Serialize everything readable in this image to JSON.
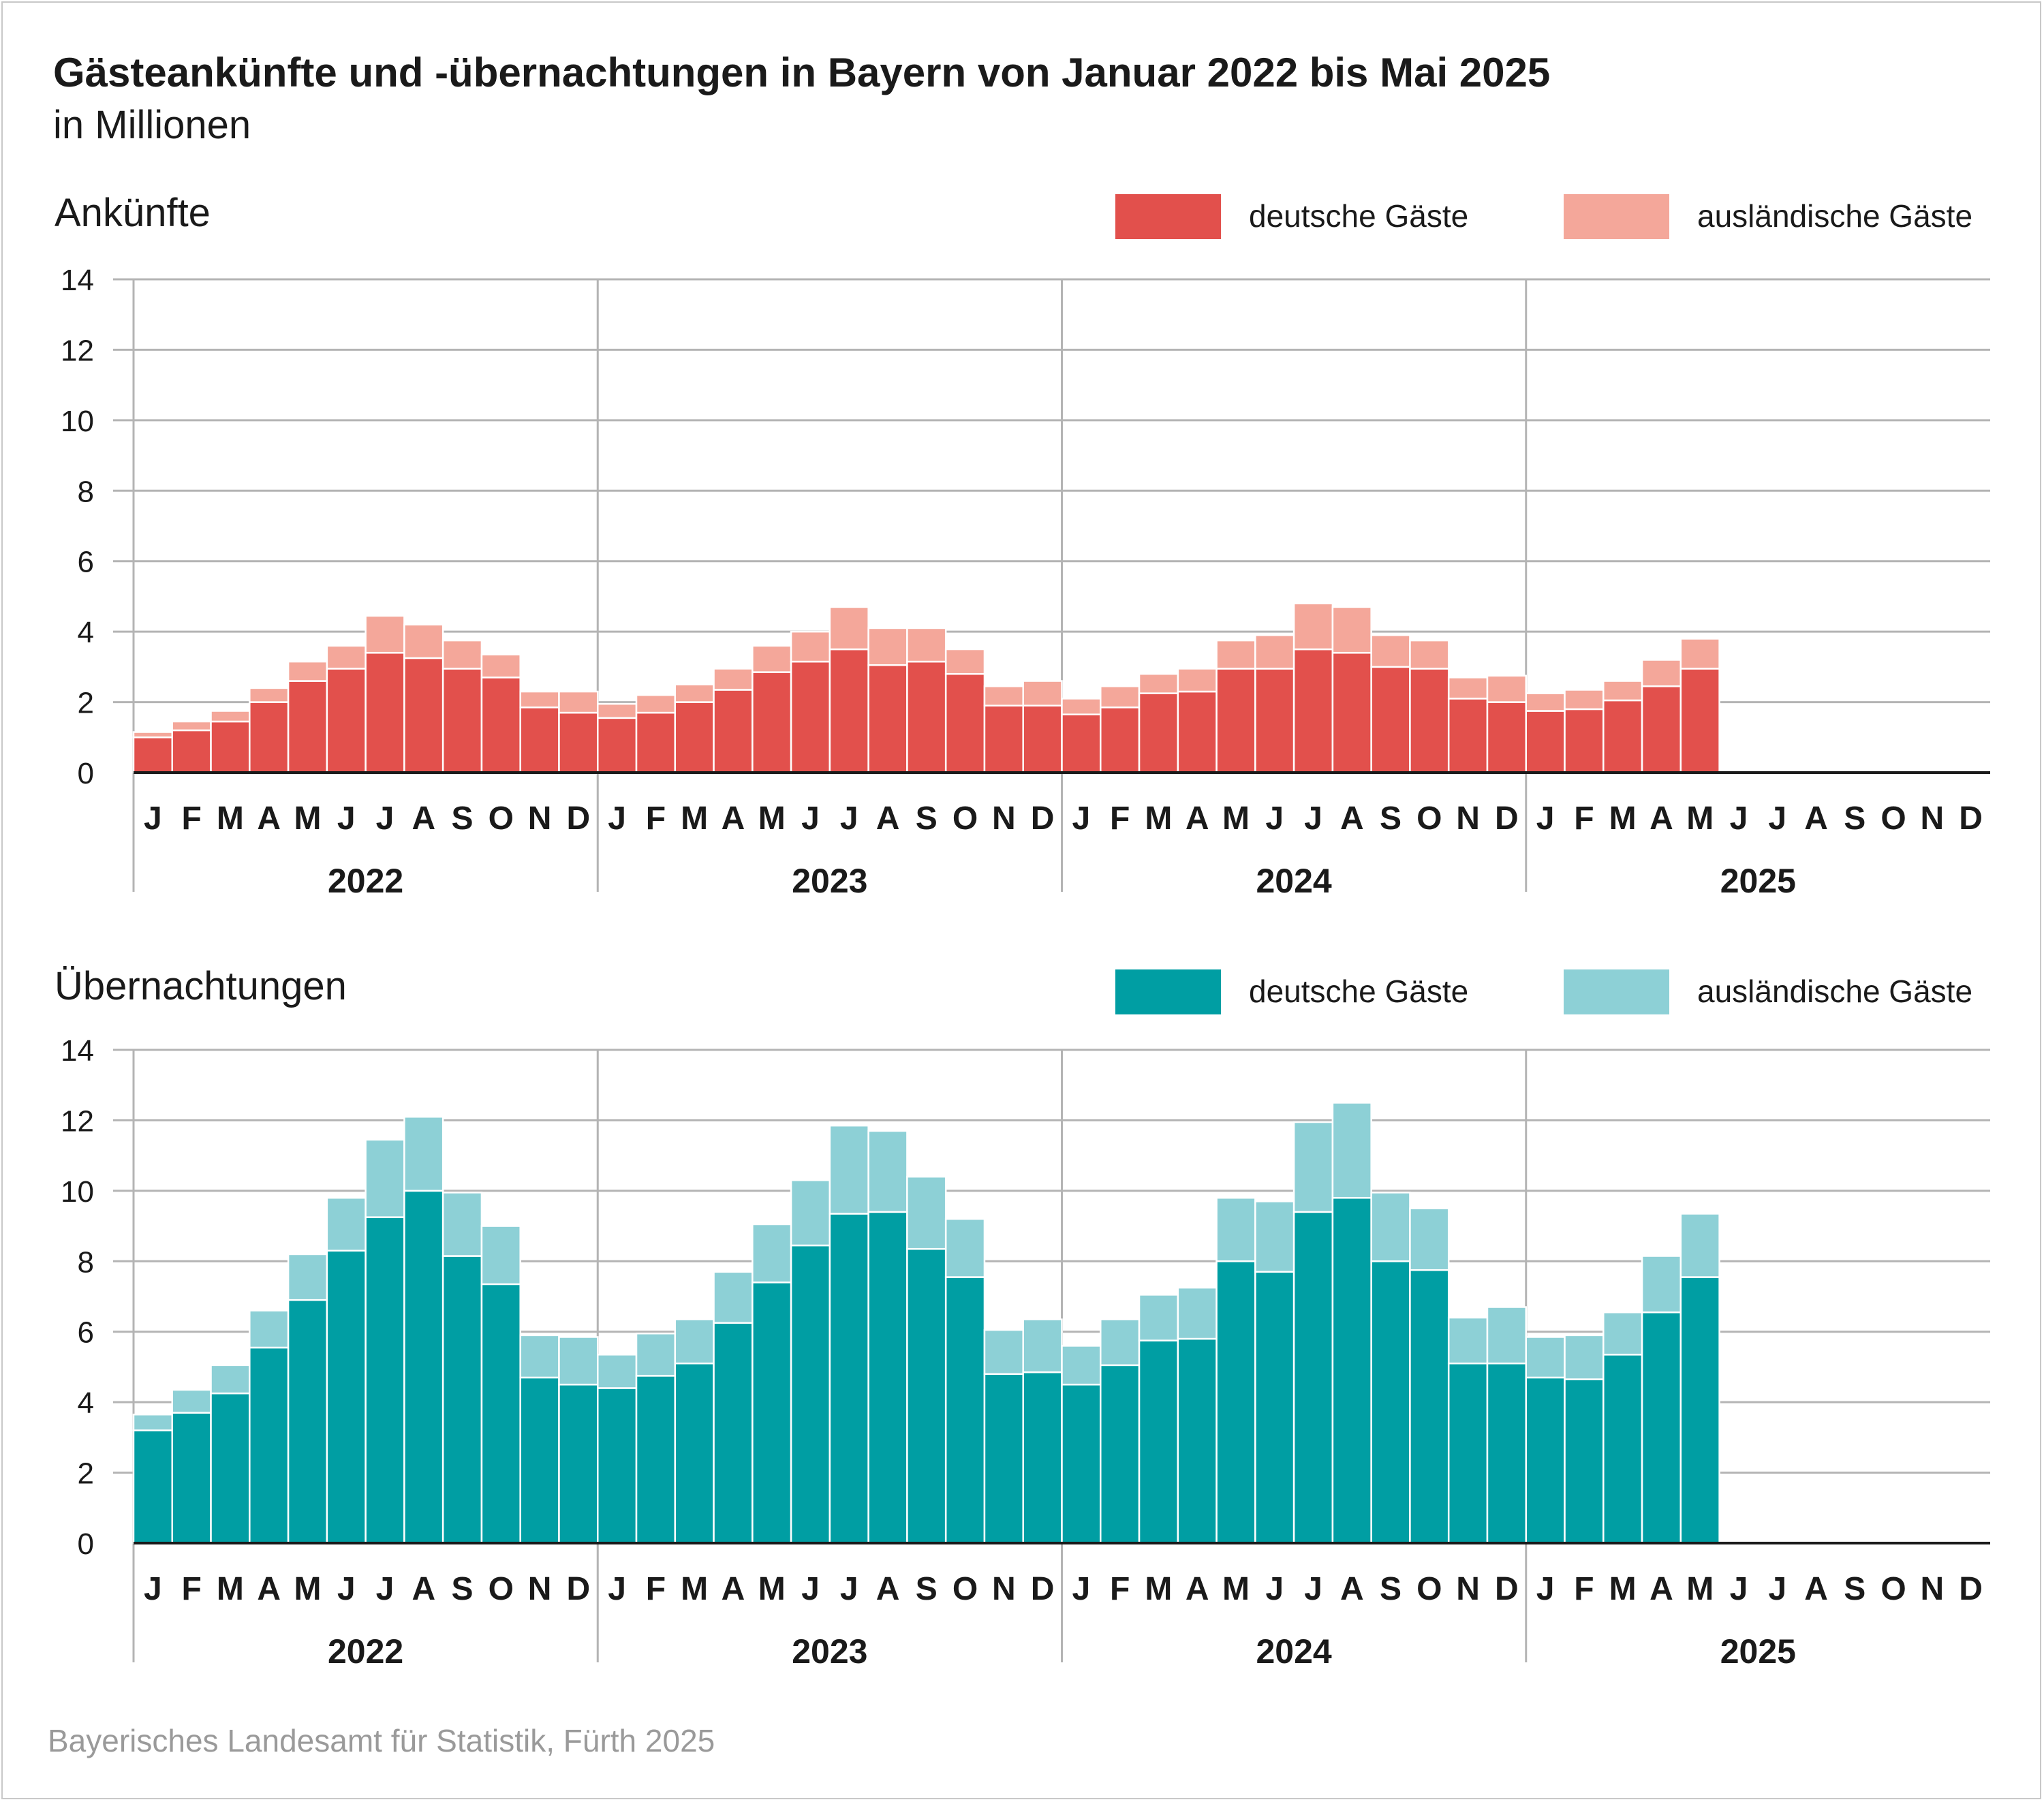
{
  "header": {
    "title": "Gästeankünfte und -übernachtungen in Bayern von Januar 2022 bis Mai 2025",
    "subtitle": "in Millionen"
  },
  "source": "Bayerisches Landesamt für Statistik, Fürth 2025",
  "colors": {
    "arrivals_domestic": "#e2504c",
    "arrivals_foreign": "#f4a79a",
    "nights_domestic": "#009ea3",
    "nights_foreign": "#8dd0d6",
    "grid": "#b4b4b4",
    "axis": "#1a1a1a"
  },
  "chart_data": [
    {
      "type": "bar",
      "stacked": true,
      "title": "Ankünfte",
      "ylim": [
        0,
        14
      ],
      "yticks": [
        0,
        2,
        4,
        6,
        8,
        10,
        12,
        14
      ],
      "grid": true,
      "legend_position": "top-right",
      "years": [
        "2022",
        "2023",
        "2024",
        "2025"
      ],
      "month_labels": [
        "J",
        "F",
        "M",
        "A",
        "M",
        "J",
        "J",
        "A",
        "S",
        "O",
        "N",
        "D"
      ],
      "series": [
        {
          "name": "deutsche Gäste",
          "values": [
            1.0,
            1.2,
            1.45,
            2.0,
            2.6,
            2.95,
            3.4,
            3.25,
            2.95,
            2.7,
            1.85,
            1.7,
            1.55,
            1.7,
            2.0,
            2.35,
            2.85,
            3.15,
            3.5,
            3.05,
            3.15,
            2.8,
            1.9,
            1.9,
            1.65,
            1.85,
            2.25,
            2.3,
            2.95,
            2.95,
            3.5,
            3.4,
            3.0,
            2.95,
            2.1,
            2.0,
            1.75,
            1.8,
            2.05,
            2.45,
            2.95
          ]
        },
        {
          "name": "ausländische Gäste",
          "values": [
            0.15,
            0.25,
            0.3,
            0.4,
            0.55,
            0.65,
            1.05,
            0.95,
            0.8,
            0.65,
            0.45,
            0.6,
            0.4,
            0.5,
            0.5,
            0.6,
            0.75,
            0.85,
            1.2,
            1.05,
            0.95,
            0.7,
            0.55,
            0.7,
            0.45,
            0.6,
            0.55,
            0.65,
            0.8,
            0.95,
            1.3,
            1.3,
            0.9,
            0.8,
            0.6,
            0.75,
            0.5,
            0.55,
            0.55,
            0.75,
            0.85
          ]
        }
      ]
    },
    {
      "type": "bar",
      "stacked": true,
      "title": "Übernachtungen",
      "ylim": [
        0,
        14
      ],
      "yticks": [
        0,
        2,
        4,
        6,
        8,
        10,
        12,
        14
      ],
      "grid": true,
      "legend_position": "top-right",
      "years": [
        "2022",
        "2023",
        "2024",
        "2025"
      ],
      "month_labels": [
        "J",
        "F",
        "M",
        "A",
        "M",
        "J",
        "J",
        "A",
        "S",
        "O",
        "N",
        "D"
      ],
      "series": [
        {
          "name": "deutsche Gäste",
          "values": [
            3.2,
            3.7,
            4.25,
            5.55,
            6.9,
            8.3,
            9.25,
            10.0,
            8.15,
            7.35,
            4.7,
            4.5,
            4.4,
            4.75,
            5.1,
            6.25,
            7.4,
            8.45,
            9.35,
            9.4,
            8.35,
            7.55,
            4.8,
            4.85,
            4.5,
            5.05,
            5.75,
            5.8,
            8.0,
            7.7,
            9.4,
            9.8,
            8.0,
            7.75,
            5.1,
            5.1,
            4.7,
            4.65,
            5.35,
            6.55,
            7.55
          ]
        },
        {
          "name": "ausländische Gäste",
          "values": [
            0.45,
            0.65,
            0.8,
            1.05,
            1.3,
            1.5,
            2.2,
            2.1,
            1.8,
            1.65,
            1.2,
            1.35,
            0.95,
            1.2,
            1.25,
            1.45,
            1.65,
            1.85,
            2.5,
            2.3,
            2.05,
            1.65,
            1.25,
            1.5,
            1.1,
            1.3,
            1.3,
            1.45,
            1.8,
            2.0,
            2.55,
            2.7,
            1.95,
            1.75,
            1.3,
            1.6,
            1.15,
            1.25,
            1.2,
            1.6,
            1.8
          ]
        }
      ]
    }
  ]
}
